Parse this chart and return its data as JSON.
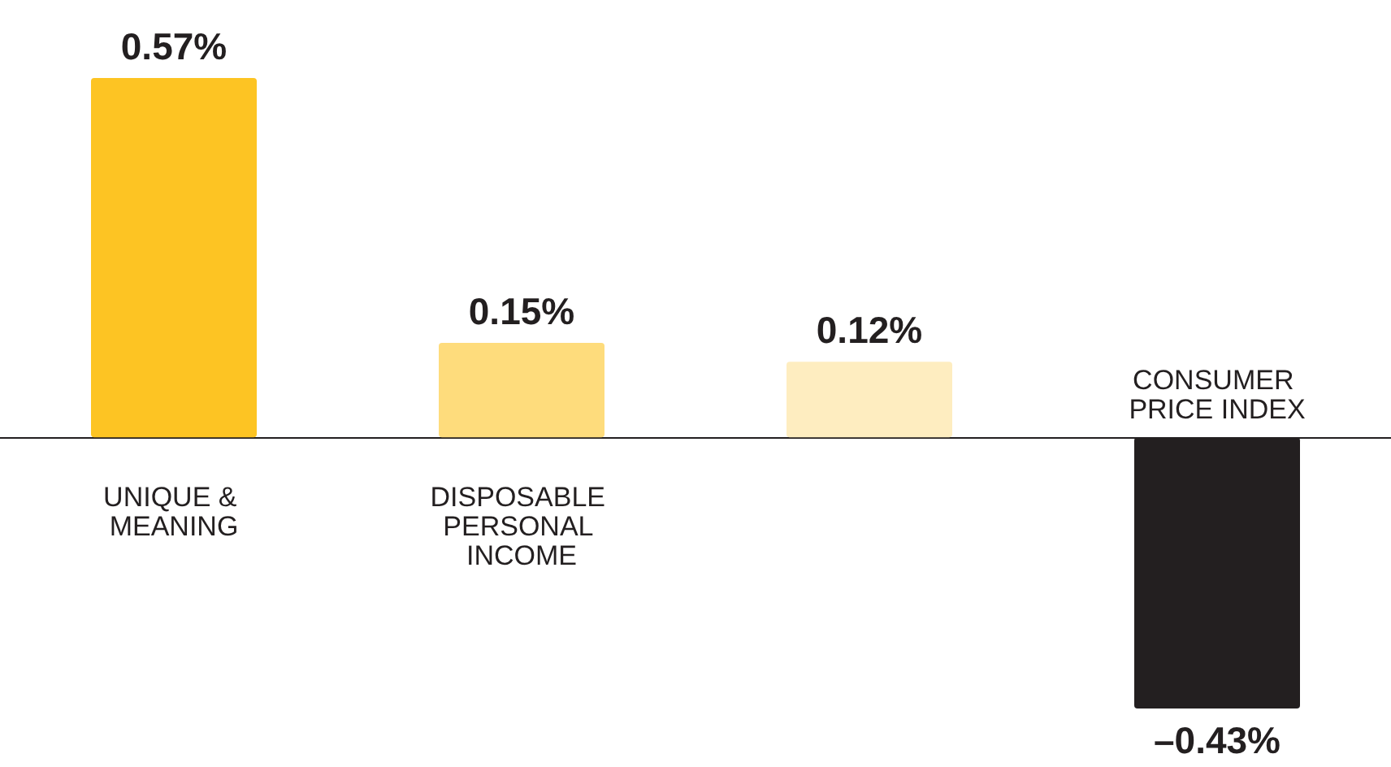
{
  "chart_data": {
    "type": "bar",
    "categories": [
      "UNIQUE & MEANING",
      "DISPOSABLE PERSONAL INCOME",
      null,
      "CONSUMER PRICE INDEX"
    ],
    "values": [
      0.57,
      0.15,
      0.12,
      -0.43
    ],
    "colors": [
      "#fdc423",
      "#fedc7c",
      "#feedc0",
      "#231f20"
    ],
    "value_labels": [
      "0.57%",
      "0.15%",
      "0.12%",
      "–0.43%"
    ]
  }
}
